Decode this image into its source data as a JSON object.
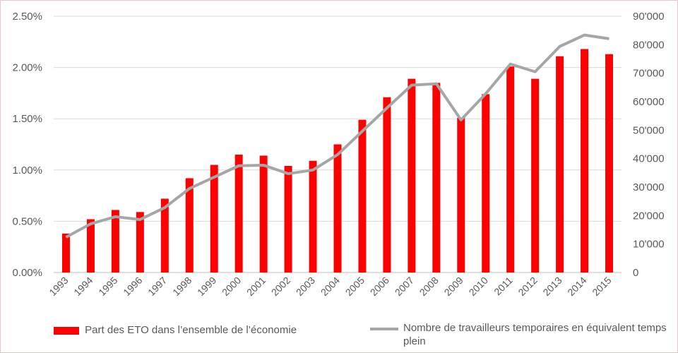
{
  "chart_data": {
    "type": "bar+line",
    "categories": [
      "1993",
      "1994",
      "1995",
      "1996",
      "1997",
      "1998",
      "1999",
      "2000",
      "2001",
      "2002",
      "2003",
      "2004",
      "2005",
      "2006",
      "2007",
      "2008",
      "2009",
      "2010",
      "2011",
      "2012",
      "2013",
      "2014",
      "2015"
    ],
    "series": [
      {
        "name": "Part des ETO dans l’ensemble de l’économie",
        "type": "bar",
        "axis": "left",
        "color": "#ff0000",
        "values": [
          0.38,
          0.52,
          0.61,
          0.59,
          0.72,
          0.92,
          1.05,
          1.15,
          1.14,
          1.04,
          1.09,
          1.25,
          1.49,
          1.71,
          1.89,
          1.85,
          1.51,
          1.74,
          2.01,
          1.89,
          2.11,
          2.18,
          2.13
        ]
      },
      {
        "name": "Nombre de travailleurs temporaires en équivalent temps plein",
        "type": "line",
        "axis": "right",
        "color": "#a6a6a6",
        "values": [
          12400,
          17100,
          19600,
          18600,
          22800,
          29500,
          33500,
          37500,
          37700,
          34700,
          36000,
          41400,
          49600,
          57800,
          65800,
          66300,
          53600,
          62800,
          73200,
          70500,
          79400,
          83400,
          82100
        ]
      }
    ],
    "y_left": {
      "range": [
        0,
        2.5
      ],
      "ticks": [
        "0.00%",
        "0.50%",
        "1.00%",
        "1.50%",
        "2.00%",
        "2.50%"
      ]
    },
    "y_right": {
      "range": [
        0,
        90000
      ],
      "ticks": [
        "0",
        "10'000",
        "20'000",
        "30'000",
        "40'000",
        "50'000",
        "60'000",
        "70'000",
        "80'000",
        "90'000"
      ]
    },
    "grid": true,
    "legend_placement": "bottom"
  }
}
